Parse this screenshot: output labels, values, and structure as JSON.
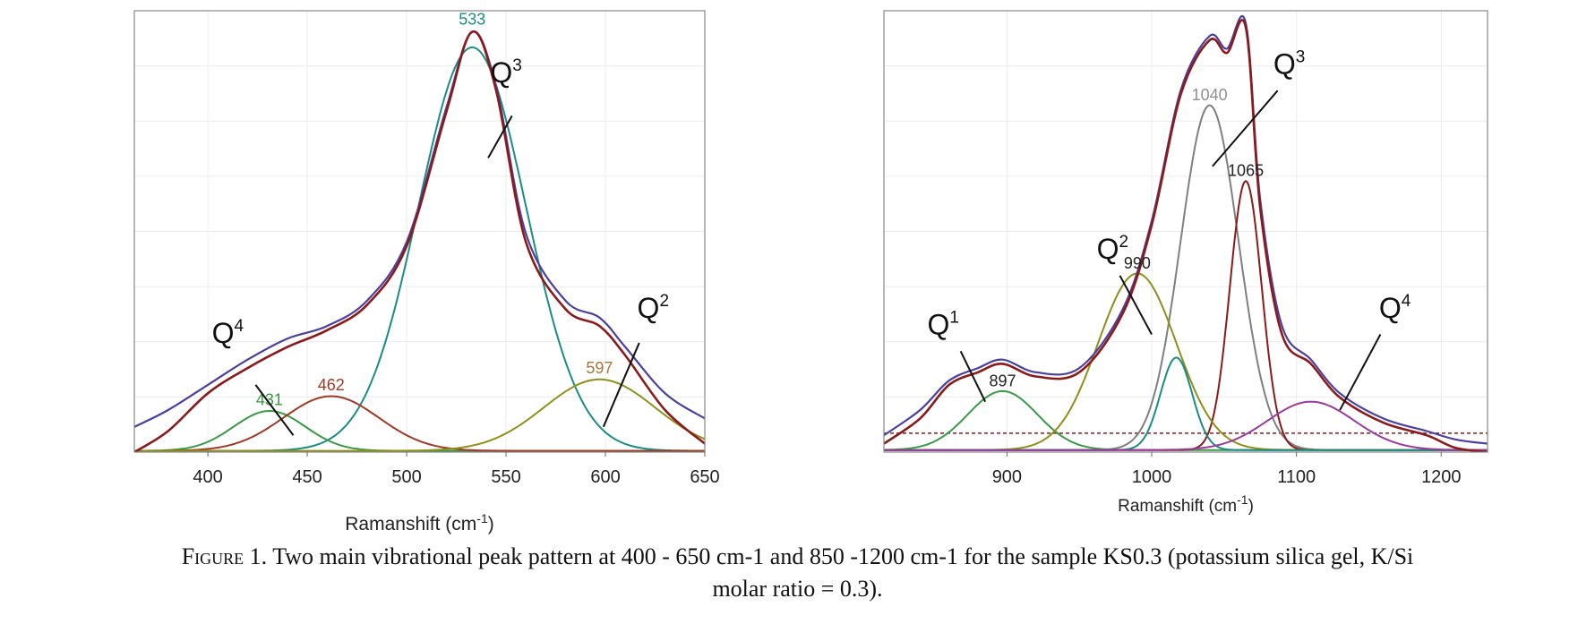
{
  "chart_data": [
    {
      "type": "line",
      "xlabel": "Ramanshift (cm-1)",
      "x_ticks": [
        400,
        450,
        500,
        550,
        600,
        650
      ],
      "xlim": [
        363,
        650
      ],
      "ylim": [
        0,
        1.05
      ],
      "grid": true,
      "series": [
        {
          "color": "#4b3fa0",
          "role": "measured spectrum",
          "x": [
            363,
            380,
            400,
            420,
            440,
            460,
            480,
            500,
            520,
            533,
            545,
            560,
            580,
            597,
            610,
            630,
            650
          ],
          "y": [
            0.06,
            0.1,
            0.16,
            0.22,
            0.27,
            0.3,
            0.36,
            0.5,
            0.82,
            1.0,
            0.87,
            0.52,
            0.36,
            0.32,
            0.25,
            0.14,
            0.08
          ]
        },
        {
          "color": "#8b1a1a",
          "role": "fitted envelope",
          "x": [
            363,
            380,
            400,
            420,
            440,
            460,
            480,
            500,
            520,
            533,
            545,
            560,
            580,
            597,
            610,
            630,
            650
          ],
          "y": [
            0.0,
            0.05,
            0.14,
            0.2,
            0.25,
            0.29,
            0.35,
            0.49,
            0.81,
            1.0,
            0.86,
            0.5,
            0.34,
            0.3,
            0.23,
            0.1,
            0.02
          ]
        },
        {
          "color": "#1a8c86",
          "role": "Q3 component",
          "center": 533,
          "height": 0.96,
          "width": 27
        },
        {
          "color": "#3a9a45",
          "role": "Q4 component",
          "center": 431,
          "height": 0.095,
          "width": 18
        },
        {
          "color": "#a03a25",
          "role": "Q4 component",
          "center": 462,
          "height": 0.13,
          "width": 24
        },
        {
          "color": "#8f8f1a",
          "role": "Q2 component",
          "center": 597,
          "height": 0.17,
          "width": 28
        }
      ],
      "peak_labels": [
        {
          "text": "533",
          "x": 533,
          "y": 1.0,
          "color": "#1a8c86"
        },
        {
          "text": "431",
          "x": 431,
          "y": 0.095,
          "color": "#3a9a45"
        },
        {
          "text": "462",
          "x": 462,
          "y": 0.13,
          "color": "#a03a25"
        },
        {
          "text": "597",
          "x": 597,
          "y": 0.17,
          "color": "#a8763a"
        }
      ],
      "annotations": [
        {
          "text": "Q",
          "sup": "4",
          "x": 410,
          "y": 0.26,
          "line": [
            [
              424,
              0.16
            ],
            [
              443,
              0.04
            ]
          ]
        },
        {
          "text": "Q",
          "sup": "3",
          "x": 550,
          "y": 0.88,
          "line": [
            [
              553,
              0.8
            ],
            [
              541,
              0.7
            ]
          ]
        },
        {
          "text": "Q",
          "sup": "2",
          "x": 624,
          "y": 0.32,
          "line": [
            [
              617,
              0.26
            ],
            [
              599,
              0.06
            ]
          ]
        }
      ]
    },
    {
      "type": "line",
      "xlabel": "Ramanshift (cm-1)",
      "x_ticks": [
        900,
        1000,
        1100,
        1200
      ],
      "xlim": [
        815,
        1232
      ],
      "ylim": [
        0,
        1.05
      ],
      "grid": true,
      "baseline": 0.045,
      "series": [
        {
          "color": "#4b3fa0",
          "role": "measured spectrum",
          "x": [
            815,
            840,
            860,
            880,
            897,
            920,
            950,
            980,
            1000,
            1020,
            1040,
            1052,
            1065,
            1075,
            1090,
            1110,
            1130,
            1160,
            1190,
            1210,
            1232
          ],
          "y": [
            0.04,
            0.1,
            0.17,
            0.2,
            0.22,
            0.19,
            0.2,
            0.34,
            0.55,
            0.86,
            0.99,
            0.96,
            1.02,
            0.6,
            0.3,
            0.22,
            0.14,
            0.08,
            0.05,
            0.03,
            0.02
          ]
        },
        {
          "color": "#8b1a1a",
          "role": "fitted envelope",
          "x": [
            815,
            840,
            860,
            880,
            897,
            920,
            950,
            980,
            1000,
            1020,
            1040,
            1052,
            1065,
            1075,
            1090,
            1110,
            1130,
            1160,
            1190,
            1210,
            1232
          ],
          "y": [
            0.02,
            0.08,
            0.16,
            0.19,
            0.21,
            0.18,
            0.19,
            0.33,
            0.54,
            0.85,
            0.98,
            0.95,
            1.01,
            0.58,
            0.28,
            0.21,
            0.13,
            0.07,
            0.04,
            0.01,
            0.0
          ]
        },
        {
          "color": "#3a9a45",
          "role": "Q1 component",
          "center": 897,
          "height": 0.14,
          "width": 24
        },
        {
          "color": "#7f7f7f",
          "role": "Q3 component",
          "center": 1040,
          "height": 0.82,
          "width": 20
        },
        {
          "color": "#8b1a1a",
          "role": "Q3 component",
          "center": 1065,
          "height": 0.64,
          "width": 11
        },
        {
          "color": "#8f8f1a",
          "role": "Q2 component",
          "center": 990,
          "height": 0.42,
          "width": 27
        },
        {
          "color": "#1a8c86",
          "role": "component",
          "center": 1017,
          "height": 0.22,
          "width": 11
        },
        {
          "color": "#9a3aa0",
          "role": "Q4 component",
          "center": 1110,
          "height": 0.115,
          "width": 30
        }
      ],
      "peak_labels": [
        {
          "text": "1040",
          "x": 1040,
          "y": 0.82,
          "color": "#8f8f8f"
        },
        {
          "text": "1065",
          "x": 1065,
          "y": 0.64,
          "color": "#222222"
        },
        {
          "text": "990",
          "x": 990,
          "y": 0.42,
          "color": "#222222"
        },
        {
          "text": "897",
          "x": 897,
          "y": 0.14,
          "color": "#222222"
        }
      ],
      "annotations": [
        {
          "text": "Q",
          "sup": "1",
          "x": 856,
          "y": 0.28,
          "line": [
            [
              868,
              0.24
            ],
            [
              885,
              0.12
            ]
          ]
        },
        {
          "text": "Q",
          "sup": "2",
          "x": 973,
          "y": 0.46,
          "line": [
            [
              978,
              0.42
            ],
            [
              1000,
              0.28
            ]
          ]
        },
        {
          "text": "Q",
          "sup": "3",
          "x": 1095,
          "y": 0.9,
          "line": [
            [
              1087,
              0.86
            ],
            [
              1042,
              0.68
            ]
          ]
        },
        {
          "text": "Q",
          "sup": "4",
          "x": 1168,
          "y": 0.32,
          "line": [
            [
              1158,
              0.28
            ],
            [
              1130,
              0.1
            ]
          ]
        }
      ]
    }
  ],
  "caption": {
    "label": "Figure 1.",
    "line1": "Two main vibrational peak pattern at 400 - 650 cm-1 and 850 -1200 cm-1 for the sample KS0.3 (potassium silica gel, K/Si",
    "line2": "molar ratio = 0.3)."
  }
}
